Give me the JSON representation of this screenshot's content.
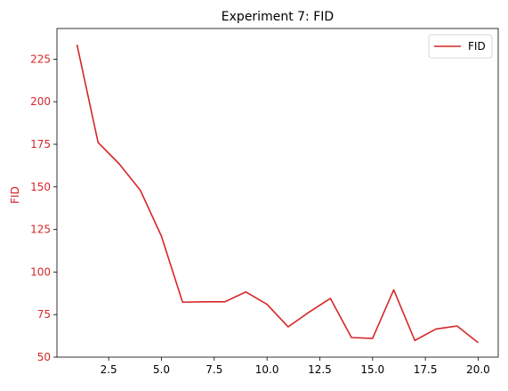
{
  "chart_data": {
    "type": "line",
    "title": "Experiment 7: FID",
    "xlabel": "",
    "ylabel": "FID",
    "x": [
      1,
      2,
      3,
      4,
      5,
      6,
      7,
      8,
      9,
      10,
      11,
      12,
      13,
      14,
      15,
      16,
      17,
      18,
      19,
      20
    ],
    "series": [
      {
        "name": "FID",
        "color": "#d62728",
        "values": [
          233.5,
          176.0,
          163.5,
          148.0,
          121.0,
          82.3,
          82.5,
          82.5,
          88.3,
          81.0,
          67.8,
          76.5,
          84.5,
          61.5,
          61.0,
          89.5,
          59.8,
          66.5,
          68.3,
          58.5
        ]
      }
    ],
    "xlim": [
      0.05,
      20.95
    ],
    "ylim": [
      50,
      243
    ],
    "xticks": [
      2.5,
      5.0,
      7.5,
      10.0,
      12.5,
      15.0,
      17.5,
      20.0
    ],
    "xtick_labels": [
      "2.5",
      "5.0",
      "7.5",
      "10.0",
      "12.5",
      "15.0",
      "17.5",
      "20.0"
    ],
    "yticks": [
      50,
      75,
      100,
      125,
      150,
      175,
      200,
      225
    ],
    "ytick_labels": [
      "50",
      "75",
      "100",
      "125",
      "150",
      "175",
      "200",
      "225"
    ],
    "ytick_color": "#d62728",
    "grid": false,
    "legend_position": "top-right"
  }
}
